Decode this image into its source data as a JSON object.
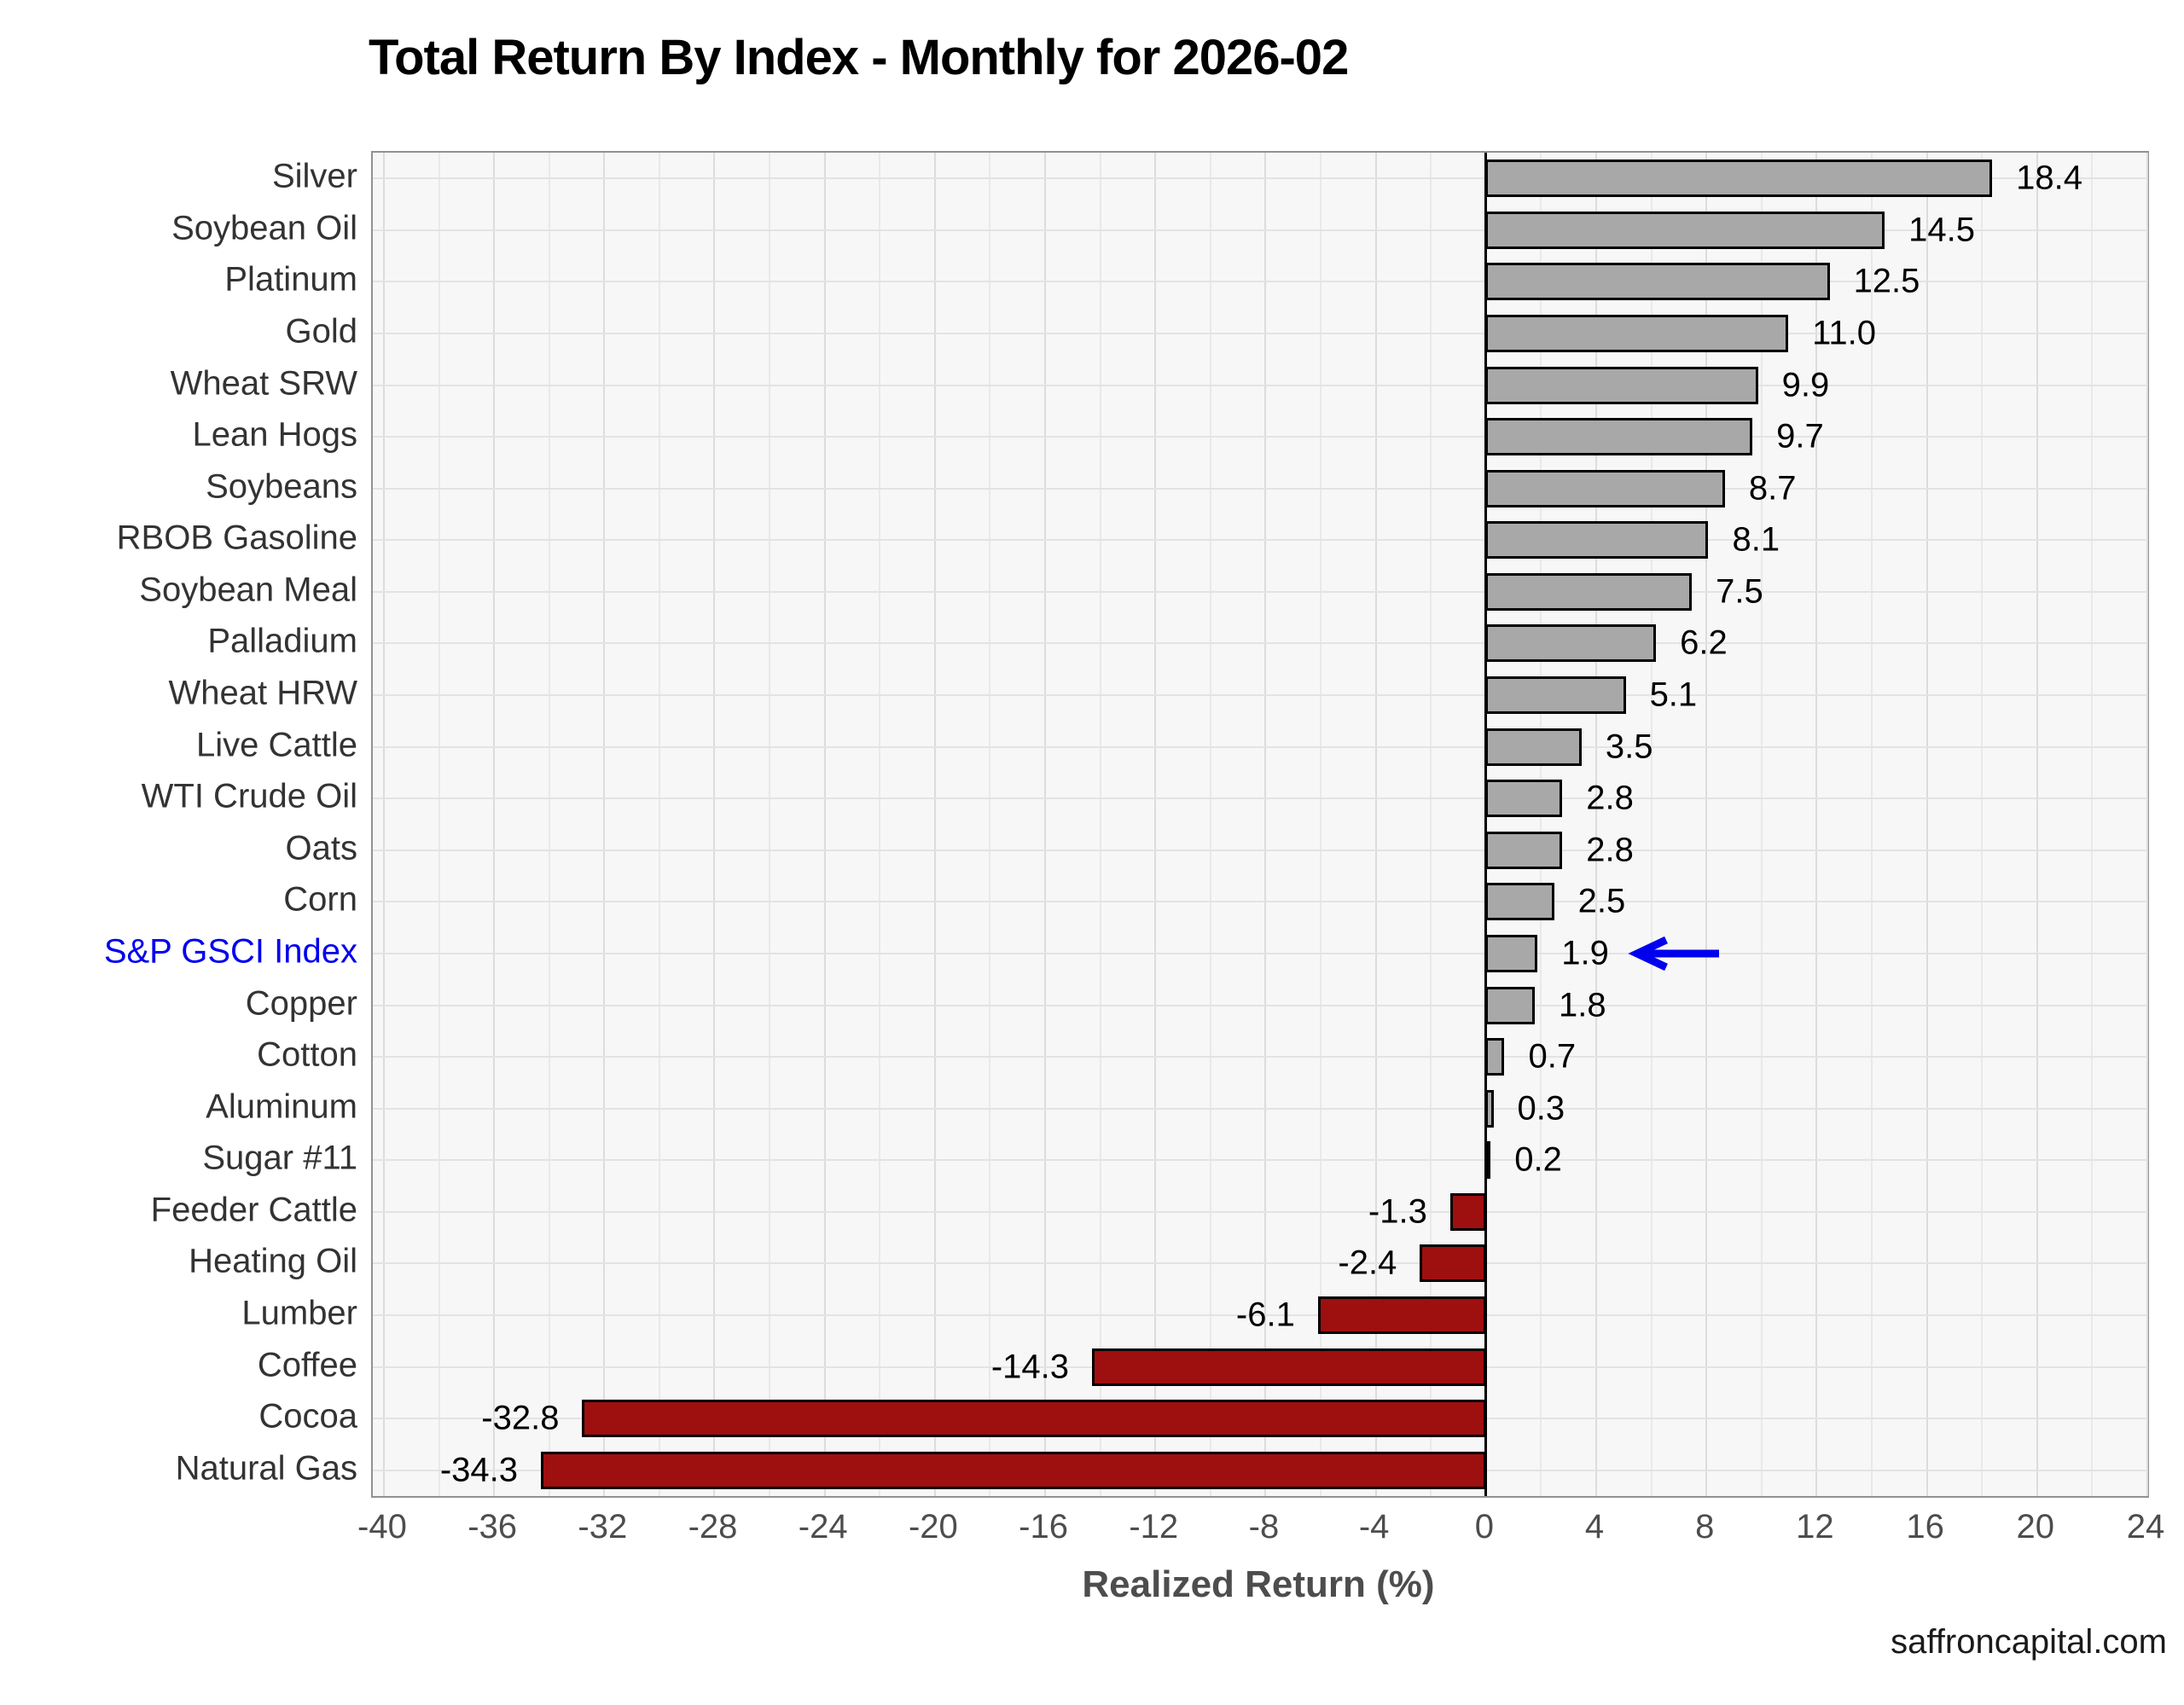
{
  "chart_data": {
    "type": "bar",
    "orientation": "horizontal",
    "title": "Total Return By Index - Monthly for 2026-02",
    "xlabel": "Realized Return (%)",
    "footer": "saffroncapital.com",
    "xlim": [
      -40.4,
      24.0
    ],
    "x_ticks": [
      -40,
      -36,
      -32,
      -28,
      -24,
      -20,
      -16,
      -12,
      -8,
      -4,
      0,
      4,
      8,
      12,
      16,
      20,
      24
    ],
    "grid": "on",
    "highlight_category": "S&P GSCI Index",
    "colors": {
      "positive_bar": "#a8a8a8",
      "negative_bar": "#9e0f0f",
      "bar_outline": "#000000",
      "highlight_text": "#0000ee",
      "arrow": "#0000ee",
      "panel_bg": "#f7f7f7"
    },
    "categories": [
      {
        "label": "Silver",
        "value": 18.4,
        "value_text": "18.4"
      },
      {
        "label": "Soybean Oil",
        "value": 14.5,
        "value_text": "14.5"
      },
      {
        "label": "Platinum",
        "value": 12.5,
        "value_text": "12.5"
      },
      {
        "label": "Gold",
        "value": 11.0,
        "value_text": "11.0"
      },
      {
        "label": "Wheat SRW",
        "value": 9.9,
        "value_text": "9.9"
      },
      {
        "label": "Lean Hogs",
        "value": 9.7,
        "value_text": "9.7"
      },
      {
        "label": "Soybeans",
        "value": 8.7,
        "value_text": "8.7"
      },
      {
        "label": "RBOB Gasoline",
        "value": 8.1,
        "value_text": "8.1"
      },
      {
        "label": "Soybean Meal",
        "value": 7.5,
        "value_text": "7.5"
      },
      {
        "label": "Palladium",
        "value": 6.2,
        "value_text": "6.2"
      },
      {
        "label": "Wheat HRW",
        "value": 5.1,
        "value_text": "5.1"
      },
      {
        "label": "Live Cattle",
        "value": 3.5,
        "value_text": "3.5"
      },
      {
        "label": "WTI Crude Oil",
        "value": 2.8,
        "value_text": "2.8"
      },
      {
        "label": "Oats",
        "value": 2.8,
        "value_text": "2.8"
      },
      {
        "label": "Corn",
        "value": 2.5,
        "value_text": "2.5"
      },
      {
        "label": "S&P GSCI Index",
        "value": 1.9,
        "value_text": "1.9"
      },
      {
        "label": "Copper",
        "value": 1.8,
        "value_text": "1.8"
      },
      {
        "label": "Cotton",
        "value": 0.7,
        "value_text": "0.7"
      },
      {
        "label": "Aluminum",
        "value": 0.3,
        "value_text": "0.3"
      },
      {
        "label": "Sugar #11",
        "value": 0.2,
        "value_text": "0.2"
      },
      {
        "label": "Feeder Cattle",
        "value": -1.3,
        "value_text": "-1.3"
      },
      {
        "label": "Heating Oil",
        "value": -2.4,
        "value_text": "-2.4"
      },
      {
        "label": "Lumber",
        "value": -6.1,
        "value_text": "-6.1"
      },
      {
        "label": "Coffee",
        "value": -14.3,
        "value_text": "-14.3"
      },
      {
        "label": "Cocoa",
        "value": -32.8,
        "value_text": "-32.8"
      },
      {
        "label": "Natural Gas",
        "value": -34.3,
        "value_text": "-34.3"
      }
    ]
  }
}
